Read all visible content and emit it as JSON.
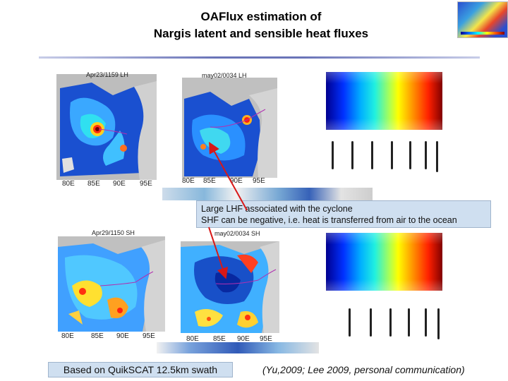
{
  "slide": {
    "title_line1": "OAFlux estimation of",
    "title_line2": "Nargis latent and sensible heat fluxes",
    "annotation_line1": "Large LHF associated with the cyclone",
    "annotation_line2": "SHF can be negative, i.e. heat is transferred from air to the ocean",
    "bottom_note": "Based on QuikSCAT 12.5km swath",
    "citation": "(Yu,2009; Lee 2009, personal communication)"
  },
  "panels": {
    "lh_left": {
      "label": "Apr23/1159  LH",
      "ticks": [
        "80E",
        "85E",
        "90E",
        "95E"
      ]
    },
    "lh_right": {
      "label": "may02/0034  LH",
      "ticks": [
        "80E",
        "85E",
        "90E",
        "95E"
      ]
    },
    "sh_left": {
      "label": "Apr29/1150  SH",
      "ticks": [
        "80E",
        "85E",
        "90E",
        "95E"
      ]
    },
    "sh_right": {
      "label": "may02/0034  SH",
      "ticks": [
        "80E",
        "85E",
        "90E",
        "95E"
      ]
    }
  },
  "colors": {
    "ocean_low": "#1040c0",
    "ocean_mid": "#30a0ff",
    "hot": "#ff3010",
    "land": "#b8b8b8",
    "arrow": "#d81818"
  }
}
